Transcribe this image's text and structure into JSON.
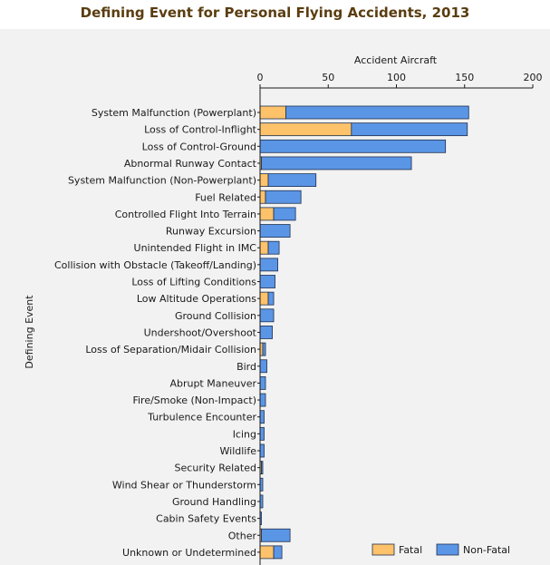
{
  "chart_data": {
    "type": "bar",
    "orientation": "horizontal",
    "stacked": true,
    "title": "Defining Event for Personal Flying Accidents, 2013",
    "xlabel": "Accident Aircraft",
    "ylabel": "Defining Event",
    "xlim": [
      0,
      200
    ],
    "xticks": [
      0,
      50,
      100,
      150,
      200
    ],
    "x_axis_position": "top",
    "grid": false,
    "legend_position": "bottom-right",
    "categories": [
      "System Malfunction (Powerplant)",
      "Loss of Control-Inflight",
      "Loss of Control-Ground",
      "Abnormal Runway Contact",
      "System Malfunction (Non-Powerplant)",
      "Fuel Related",
      "Controlled Flight Into Terrain",
      "Runway Excursion",
      "Unintended Flight in IMC",
      "Collision with Obstacle (Takeoff/Landing)",
      "Loss of Lifting Conditions",
      "Low Altitude Operations",
      "Ground Collision",
      "Undershoot/Overshoot",
      "Loss of Separation/Midair Collision",
      "Bird",
      "Abrupt Maneuver",
      "Fire/Smoke (Non-Impact)",
      "Turbulence Encounter",
      "Icing",
      "Wildlife",
      "Security Related",
      "Wind Shear or Thunderstorm",
      "Ground Handling",
      "Cabin Safety Events",
      "Other",
      "Unknown or Undetermined"
    ],
    "series": [
      {
        "name": "Fatal",
        "color": "#fdc26a",
        "values": [
          19,
          67,
          0,
          1,
          6,
          4,
          10,
          0,
          6,
          0,
          0,
          6,
          0,
          0,
          2,
          0,
          0,
          0,
          0,
          0,
          0,
          1,
          0,
          0,
          0,
          1,
          10
        ]
      },
      {
        "name": "Non-Fatal",
        "color": "#5b96e6",
        "values": [
          134,
          85,
          136,
          110,
          35,
          26,
          16,
          22,
          8,
          13,
          11,
          4,
          10,
          9,
          2,
          5,
          4,
          4,
          3,
          3,
          3,
          1,
          2,
          2,
          1,
          21,
          6
        ]
      }
    ]
  }
}
